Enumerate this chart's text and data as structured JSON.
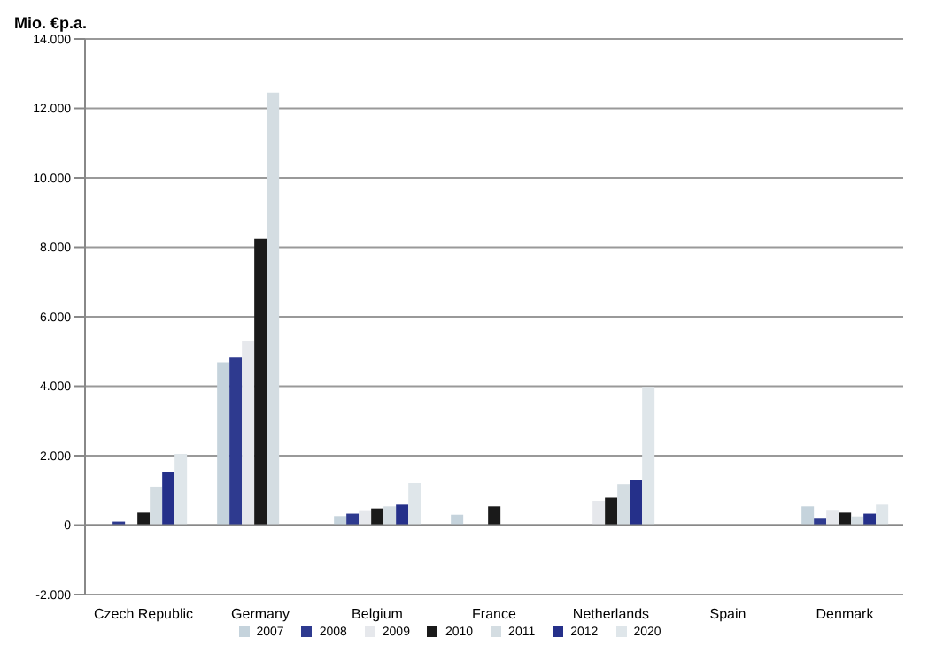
{
  "chart_data": {
    "type": "bar",
    "ylabel": "Mio. €p.a.",
    "categories": [
      "Czech Republic",
      "Germany",
      "Belgium",
      "France",
      "Netherlands",
      "Spain",
      "Denmark"
    ],
    "series": [
      {
        "name": "2007",
        "color": "#c5d3dc",
        "values": [
          null,
          4690,
          260,
          300,
          null,
          null,
          540
        ]
      },
      {
        "name": "2008",
        "color": "#2e3a8f",
        "values": [
          100,
          4820,
          330,
          null,
          null,
          null,
          210
        ]
      },
      {
        "name": "2009",
        "color": "#e6e8ec",
        "values": [
          null,
          5310,
          430,
          null,
          700,
          null,
          440
        ]
      },
      {
        "name": "2010",
        "color": "#1a1a1a",
        "values": [
          360,
          8250,
          480,
          540,
          790,
          null,
          360
        ]
      },
      {
        "name": "2011",
        "color": "#d4dde2",
        "values": [
          1110,
          12450,
          540,
          null,
          1180,
          null,
          250
        ]
      },
      {
        "name": "2012",
        "color": "#25308a",
        "values": [
          1520,
          null,
          590,
          null,
          1300,
          null,
          330
        ]
      },
      {
        "name": "2020",
        "color": "#dfe6ea",
        "values": [
          2050,
          null,
          1210,
          null,
          3980,
          null,
          590
        ]
      }
    ],
    "ylim": [
      -2000,
      14000
    ],
    "yticks": [
      {
        "value": -2000,
        "label": "-2.000"
      },
      {
        "value": 0,
        "label": "0"
      },
      {
        "value": 2000,
        "label": "2.000"
      },
      {
        "value": 4000,
        "label": "4.000"
      },
      {
        "value": 6000,
        "label": "6.000"
      },
      {
        "value": 8000,
        "label": "8.000"
      },
      {
        "value": 10000,
        "label": "10.000"
      },
      {
        "value": 12000,
        "label": "12.000"
      },
      {
        "value": 14000,
        "label": "14.000"
      }
    ],
    "grid": "y",
    "legend": "bottom"
  }
}
